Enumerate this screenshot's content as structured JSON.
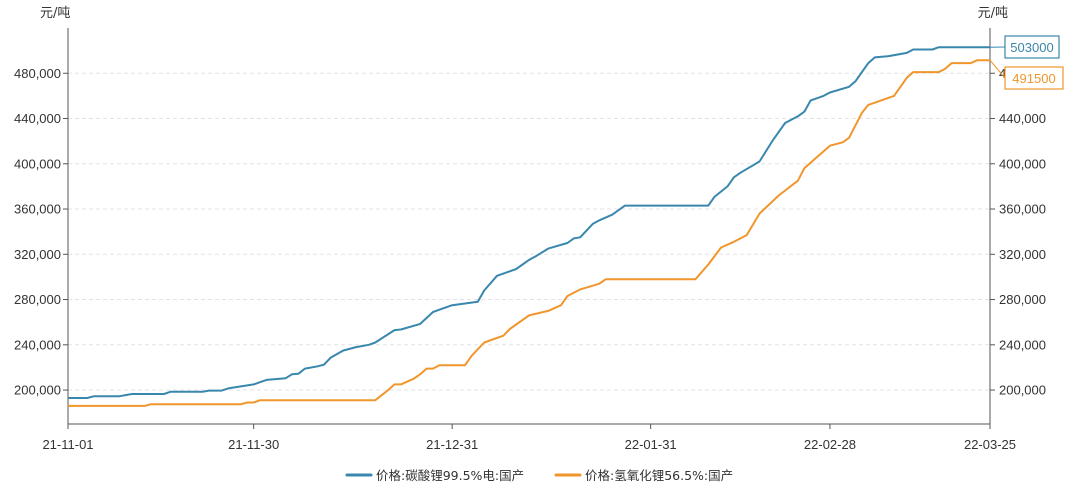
{
  "chart_data": {
    "type": "line",
    "title": "",
    "ylabel_left": "元/吨",
    "ylabel_right": "元/吨",
    "ylim": [
      170000,
      520000
    ],
    "yticks": [
      200000,
      240000,
      280000,
      320000,
      360000,
      400000,
      440000,
      480000
    ],
    "ytick_labels": [
      "200,000",
      "240,000",
      "280,000",
      "320,000",
      "360,000",
      "400,000",
      "440,000",
      "480,000"
    ],
    "xlim": [
      "2021-11-01",
      "2022-03-25"
    ],
    "xticks": [
      "2021-11-01",
      "2021-11-30",
      "2021-12-31",
      "2022-01-31",
      "2022-02-28",
      "2022-03-25"
    ],
    "xtick_labels": [
      "21-11-01",
      "21-11-30",
      "21-12-31",
      "22-01-31",
      "22-02-28",
      "22-03-25"
    ],
    "grid": true,
    "legend_position": "bottom-center",
    "series": [
      {
        "name": "价格:碳酸锂99.5%电:国产",
        "color": "#3a87ad",
        "end_label": "503000",
        "points": [
          [
            "2021-11-01",
            193000
          ],
          [
            "2021-11-04",
            193000
          ],
          [
            "2021-11-05",
            194500
          ],
          [
            "2021-11-09",
            194500
          ],
          [
            "2021-11-10",
            195500
          ],
          [
            "2021-11-11",
            196500
          ],
          [
            "2021-11-16",
            196500
          ],
          [
            "2021-11-17",
            198500
          ],
          [
            "2021-11-22",
            198500
          ],
          [
            "2021-11-23",
            199500
          ],
          [
            "2021-11-25",
            199500
          ],
          [
            "2021-11-26",
            201500
          ],
          [
            "2021-11-30",
            205000
          ],
          [
            "2021-12-02",
            209000
          ],
          [
            "2021-12-05",
            210500
          ],
          [
            "2021-12-06",
            214000
          ],
          [
            "2021-12-07",
            214500
          ],
          [
            "2021-12-08",
            219000
          ],
          [
            "2021-12-10",
            221000
          ],
          [
            "2021-12-11",
            222500
          ],
          [
            "2021-12-12",
            228500
          ],
          [
            "2021-12-14",
            235000
          ],
          [
            "2021-12-16",
            238000
          ],
          [
            "2021-12-18",
            240000
          ],
          [
            "2021-12-19",
            242000
          ],
          [
            "2021-12-22",
            253000
          ],
          [
            "2021-12-23",
            253500
          ],
          [
            "2021-12-26",
            258500
          ],
          [
            "2021-12-28",
            269000
          ],
          [
            "2021-12-29",
            271000
          ],
          [
            "2021-12-31",
            275000
          ],
          [
            "2022-01-04",
            278000
          ],
          [
            "2022-01-05",
            288000
          ],
          [
            "2022-01-07",
            301000
          ],
          [
            "2022-01-10",
            307000
          ],
          [
            "2022-01-12",
            315000
          ],
          [
            "2022-01-13",
            318000
          ],
          [
            "2022-01-15",
            325000
          ],
          [
            "2022-01-18",
            330000
          ],
          [
            "2022-01-19",
            334000
          ],
          [
            "2022-01-20",
            335000
          ],
          [
            "2022-01-22",
            347000
          ],
          [
            "2022-01-23",
            350000
          ],
          [
            "2022-01-25",
            355000
          ],
          [
            "2022-01-27",
            363000
          ],
          [
            "2022-02-09",
            363000
          ],
          [
            "2022-02-10",
            371000
          ],
          [
            "2022-02-12",
            380000
          ],
          [
            "2022-02-13",
            388000
          ],
          [
            "2022-02-14",
            392000
          ],
          [
            "2022-02-17",
            402000
          ],
          [
            "2022-02-19",
            420000
          ],
          [
            "2022-02-21",
            436000
          ],
          [
            "2022-02-23",
            442000
          ],
          [
            "2022-02-24",
            446000
          ],
          [
            "2022-02-25",
            456000
          ],
          [
            "2022-02-27",
            460000
          ],
          [
            "2022-02-28",
            463000
          ],
          [
            "2022-03-03",
            468000
          ],
          [
            "2022-03-04",
            473000
          ],
          [
            "2022-03-06",
            489000
          ],
          [
            "2022-03-07",
            494000
          ],
          [
            "2022-03-09",
            495000
          ],
          [
            "2022-03-12",
            498000
          ],
          [
            "2022-03-13",
            501000
          ],
          [
            "2022-03-16",
            501000
          ],
          [
            "2022-03-17",
            503000
          ],
          [
            "2022-03-25",
            503000
          ]
        ]
      },
      {
        "name": "价格:氢氧化锂56.5%:国产",
        "color": "#f0962d",
        "end_label": "491500",
        "points": [
          [
            "2021-11-01",
            186000
          ],
          [
            "2021-11-13",
            186000
          ],
          [
            "2021-11-14",
            187500
          ],
          [
            "2021-11-28",
            187500
          ],
          [
            "2021-11-29",
            189000
          ],
          [
            "2021-11-30",
            189000
          ],
          [
            "2021-12-01",
            191000
          ],
          [
            "2021-12-19",
            191000
          ],
          [
            "2021-12-21",
            200000
          ],
          [
            "2021-12-22",
            205000
          ],
          [
            "2021-12-23",
            205000
          ],
          [
            "2021-12-25",
            210000
          ],
          [
            "2021-12-26",
            214000
          ],
          [
            "2021-12-27",
            219000
          ],
          [
            "2021-12-28",
            219000
          ],
          [
            "2021-12-29",
            222000
          ],
          [
            "2022-01-02",
            222000
          ],
          [
            "2022-01-03",
            230000
          ],
          [
            "2022-01-05",
            242000
          ],
          [
            "2022-01-08",
            248000
          ],
          [
            "2022-01-09",
            254000
          ],
          [
            "2022-01-12",
            266000
          ],
          [
            "2022-01-15",
            270000
          ],
          [
            "2022-01-17",
            275000
          ],
          [
            "2022-01-18",
            283000
          ],
          [
            "2022-01-20",
            289000
          ],
          [
            "2022-01-23",
            294000
          ],
          [
            "2022-01-24",
            298000
          ],
          [
            "2022-02-06",
            298000
          ],
          [
            "2022-02-07",
            298000
          ],
          [
            "2022-02-09",
            311000
          ],
          [
            "2022-02-11",
            326000
          ],
          [
            "2022-02-13",
            331000
          ],
          [
            "2022-02-15",
            337000
          ],
          [
            "2022-02-17",
            356000
          ],
          [
            "2022-02-20",
            372000
          ],
          [
            "2022-02-23",
            385000
          ],
          [
            "2022-02-24",
            396000
          ],
          [
            "2022-02-26",
            406000
          ],
          [
            "2022-02-28",
            416000
          ],
          [
            "2022-03-02",
            419000
          ],
          [
            "2022-03-03",
            423000
          ],
          [
            "2022-03-04",
            434000
          ],
          [
            "2022-03-05",
            445000
          ],
          [
            "2022-03-06",
            452000
          ],
          [
            "2022-03-08",
            456000
          ],
          [
            "2022-03-10",
            460000
          ],
          [
            "2022-03-12",
            476000
          ],
          [
            "2022-03-13",
            481000
          ],
          [
            "2022-03-17",
            481000
          ],
          [
            "2022-03-18",
            484000
          ],
          [
            "2022-03-19",
            489000
          ],
          [
            "2022-03-22",
            489000
          ],
          [
            "2022-03-23",
            491500
          ],
          [
            "2022-03-25",
            491500
          ]
        ]
      }
    ]
  }
}
